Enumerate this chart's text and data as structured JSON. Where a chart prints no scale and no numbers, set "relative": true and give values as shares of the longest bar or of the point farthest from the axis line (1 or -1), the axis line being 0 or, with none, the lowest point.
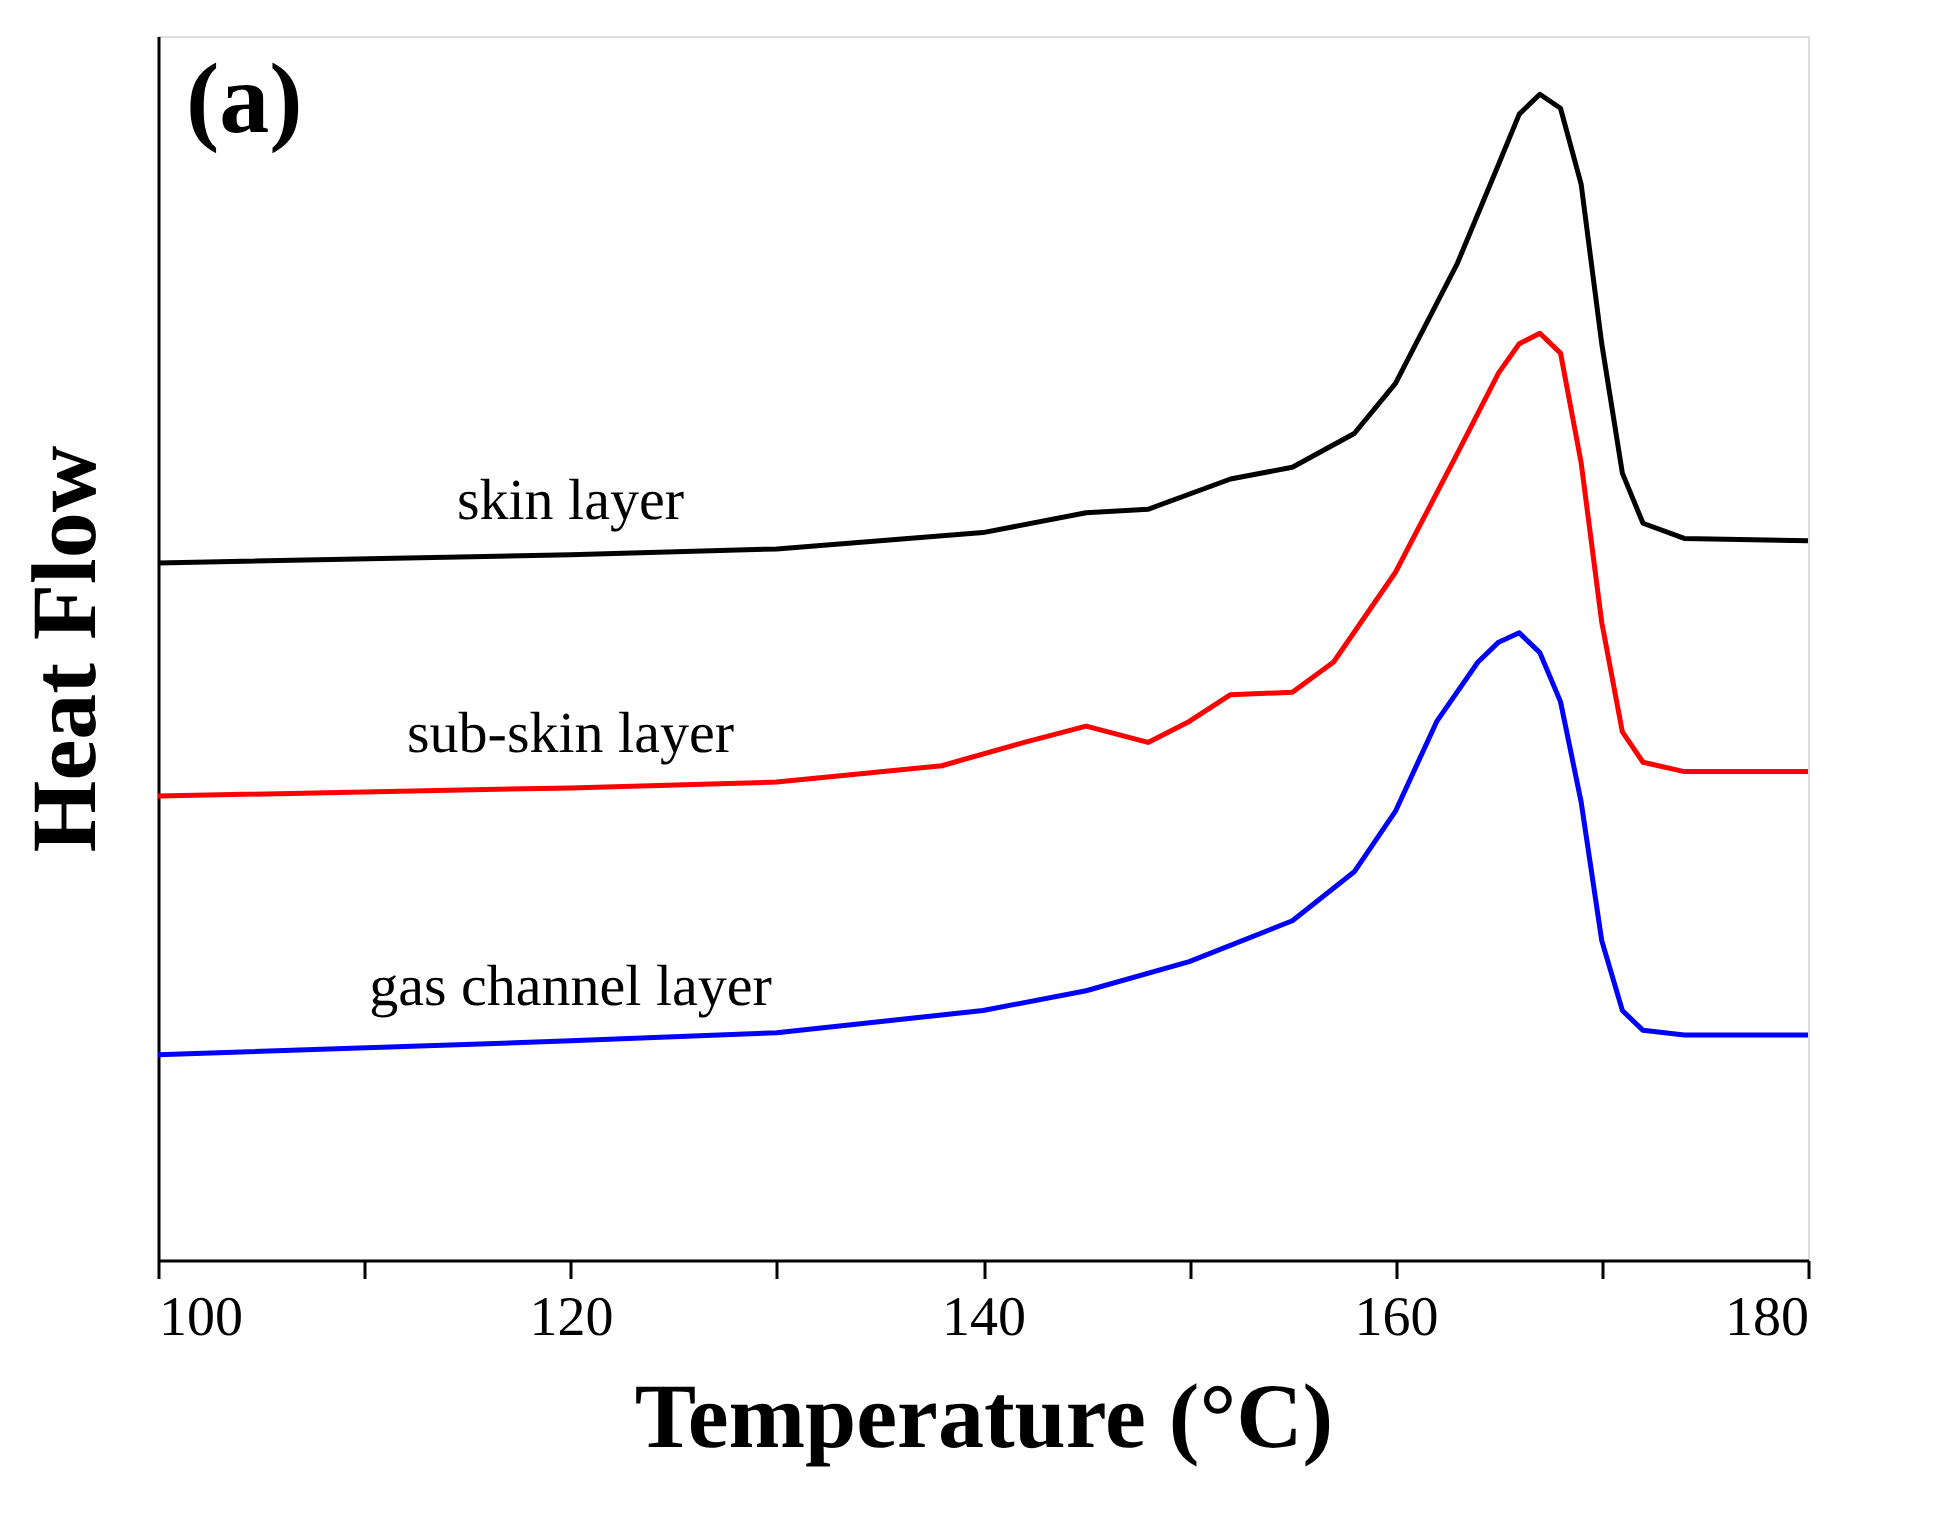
{
  "chart_data": {
    "type": "line",
    "relative": true,
    "xlabel": "Temperature (°C)",
    "ylabel": "Heat Flow",
    "annotations": [
      "(a)"
    ],
    "xlim": [
      100,
      180
    ],
    "xticks": [
      100,
      {
        "value": 110,
        "label": null
      },
      120,
      {
        "value": 130,
        "label": null
      },
      140,
      {
        "value": 150,
        "label": null
      },
      160,
      {
        "value": 170,
        "label": null
      },
      180
    ],
    "grid": false,
    "legend": false,
    "series": [
      {
        "name": "skin layer",
        "color": "#000000",
        "x": [
          100,
          120,
          130,
          140,
          145,
          148,
          152,
          155,
          158,
          160,
          163,
          165,
          166,
          167,
          168,
          169,
          170,
          171,
          172,
          174,
          180
        ],
        "values": [
          0.598,
          0.605,
          0.61,
          0.624,
          0.641,
          0.644,
          0.67,
          0.68,
          0.709,
          0.752,
          0.855,
          0.94,
          0.983,
          1.0,
          0.988,
          0.923,
          0.786,
          0.675,
          0.632,
          0.619,
          0.617
        ]
      },
      {
        "name": "sub-skin layer",
        "color": "#ff0000",
        "x": [
          100,
          120,
          130,
          138,
          142,
          145,
          148,
          150,
          152,
          155,
          157,
          160,
          163,
          165,
          166,
          167,
          168,
          169,
          170,
          171,
          172,
          174,
          180
        ],
        "values": [
          0.398,
          0.405,
          0.41,
          0.424,
          0.444,
          0.458,
          0.444,
          0.462,
          0.485,
          0.487,
          0.513,
          0.59,
          0.692,
          0.761,
          0.786,
          0.795,
          0.778,
          0.684,
          0.547,
          0.453,
          0.427,
          0.419,
          0.419
        ]
      },
      {
        "name": "gas channel layer",
        "color": "#0000ff",
        "x": [
          100,
          120,
          130,
          140,
          145,
          150,
          155,
          158,
          160,
          162,
          164,
          165,
          166,
          167,
          168,
          169,
          170,
          171,
          172,
          174,
          180
        ],
        "values": [
          0.176,
          0.188,
          0.195,
          0.214,
          0.231,
          0.256,
          0.291,
          0.333,
          0.385,
          0.462,
          0.513,
          0.53,
          0.538,
          0.521,
          0.479,
          0.393,
          0.274,
          0.214,
          0.197,
          0.193,
          0.193
        ]
      }
    ]
  }
}
